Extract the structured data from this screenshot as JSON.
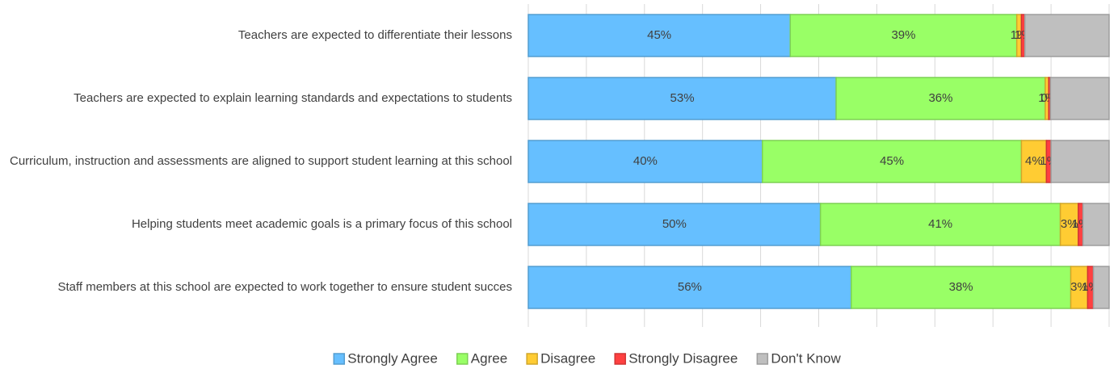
{
  "chart_data": {
    "type": "stacked-bar-horizontal",
    "categories": [
      "Teachers are expected to differentiate their lessons",
      "Teachers are expected to explain learning standards and expectations to students",
      "Curriculum, instruction and assessments are aligned to support student learning at this school",
      "Helping students meet academic goals is a primary focus of this school",
      "Staff members at this school are expected to work together to ensure student succes"
    ],
    "series": [
      {
        "name": "Strongly Agree",
        "color": "#66bfff",
        "values": [
          45.1,
          53,
          40.3,
          50.3,
          55.6
        ],
        "value_labels": [
          "45%",
          "53%",
          "40%",
          "50%",
          "56%"
        ]
      },
      {
        "name": "Agree",
        "color": "#99ff66",
        "values": [
          39,
          36,
          44.6,
          41.3,
          37.8
        ],
        "value_labels": [
          "39%",
          "36%",
          "45%",
          "41%",
          "38%"
        ]
      },
      {
        "name": "Disagree",
        "color": "#ffcc33",
        "values": [
          0.8,
          0.6,
          4.3,
          3.1,
          2.9
        ],
        "value_labels": [
          "1%",
          "1%",
          "4%",
          "3%",
          "3%"
        ]
      },
      {
        "name": "Strongly Disagree",
        "color": "#ff4040",
        "values": [
          0.6,
          0.3,
          0.8,
          0.8,
          1.0
        ],
        "value_labels": [
          "1%",
          "0%",
          "1%",
          "1%",
          "1%"
        ]
      },
      {
        "name": "Don't Know",
        "color": "#bfbfbf",
        "values": [
          14.5,
          10.1,
          10.0,
          4.5,
          2.7
        ]
      }
    ],
    "xlim": [
      0,
      100
    ],
    "xticks": [
      0,
      10,
      20,
      30,
      40,
      50,
      60,
      70,
      80,
      90,
      100
    ],
    "grid": true,
    "legend": "bottom"
  }
}
